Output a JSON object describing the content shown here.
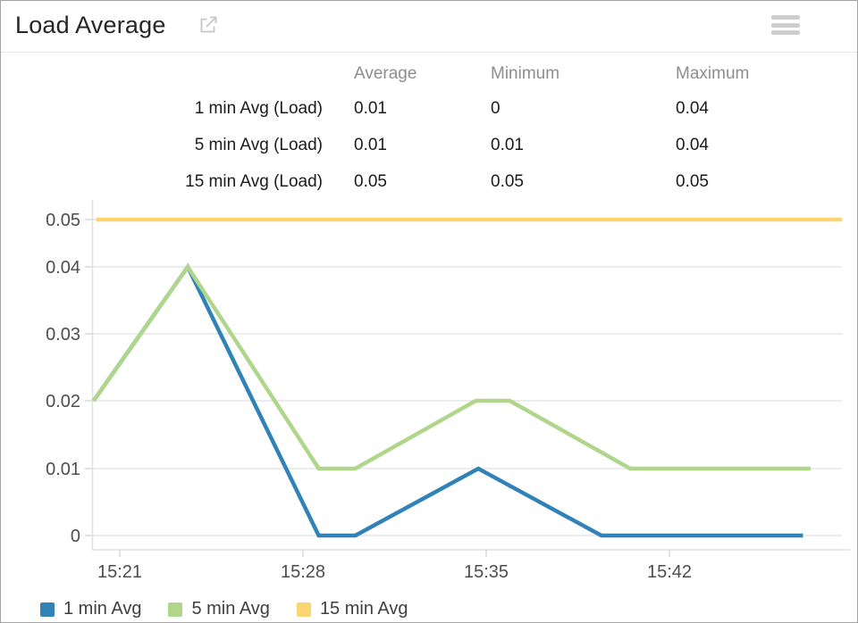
{
  "header": {
    "title": "Load Average",
    "external_link_icon": "open-in-new-window",
    "menu_icon": "hamburger-menu"
  },
  "stats_table": {
    "columns": [
      "Average",
      "Minimum",
      "Maximum"
    ],
    "rows": [
      {
        "label": "1 min Avg (Load)",
        "average": "0.01",
        "minimum": "0",
        "maximum": "0.04"
      },
      {
        "label": "5 min Avg (Load)",
        "average": "0.01",
        "minimum": "0.01",
        "maximum": "0.04"
      },
      {
        "label": "15 min Avg (Load)",
        "average": "0.05",
        "minimum": "0.05",
        "maximum": "0.05"
      }
    ]
  },
  "chart_data": {
    "type": "line",
    "title": "Load Average",
    "x_unit": "time of day (HH:MM), minutes after 15:00",
    "x_ticks": [
      {
        "label": "15:21",
        "t": 21
      },
      {
        "label": "15:28",
        "t": 28
      },
      {
        "label": "15:35",
        "t": 35
      },
      {
        "label": "15:42",
        "t": 42
      }
    ],
    "x_domain_minutes": [
      19.9,
      48.6
    ],
    "y_ticks": [
      {
        "label": "0",
        "v": 0
      },
      {
        "label": "0.01",
        "v": 0.01
      },
      {
        "label": "0.02",
        "v": 0.02
      },
      {
        "label": "0.03",
        "v": 0.03
      },
      {
        "label": "0.04",
        "v": 0.04
      },
      {
        "label": "0.05",
        "v": 0.05
      }
    ],
    "ylim": [
      0,
      0.05
    ],
    "grid": "horizontal-only",
    "legend_position": "bottom-left",
    "series": [
      {
        "name": "1 min Avg",
        "color": "#3183b7",
        "points": [
          [
            20.0,
            0.02
          ],
          [
            23.6,
            0.04
          ],
          [
            28.6,
            0
          ],
          [
            30.0,
            0
          ],
          [
            34.7,
            0.01
          ],
          [
            39.4,
            0
          ],
          [
            47.1,
            0
          ]
        ]
      },
      {
        "name": "5 min Avg",
        "color": "#afd68a",
        "points": [
          [
            20.0,
            0.02
          ],
          [
            23.6,
            0.04
          ],
          [
            28.6,
            0.01
          ],
          [
            30.0,
            0.01
          ],
          [
            34.6,
            0.02
          ],
          [
            35.9,
            0.02
          ],
          [
            40.5,
            0.01
          ],
          [
            47.4,
            0.01
          ]
        ]
      },
      {
        "name": "15 min Avg",
        "color": "#fad571",
        "points": [
          [
            20.1,
            0.05
          ],
          [
            48.6,
            0.05
          ]
        ]
      }
    ]
  },
  "legend": {
    "items": [
      {
        "label": "1 min Avg"
      },
      {
        "label": "5 min Avg"
      },
      {
        "label": "15 min Avg"
      }
    ]
  },
  "colors": {
    "series_blue": "#3183b7",
    "series_green": "#afd68a",
    "series_yellow": "#fad571",
    "grid_line": "#ececec",
    "axis_line": "#e0e0e0",
    "tick_mark": "#d9d9d9",
    "tick_label": "#4d4d4d",
    "table_header_text": "#8e8e8e",
    "table_value_text": "#1b1b1b",
    "title_text": "#262626",
    "icon_gray": "#c6c6c6",
    "divider": "#e8e8e8"
  }
}
